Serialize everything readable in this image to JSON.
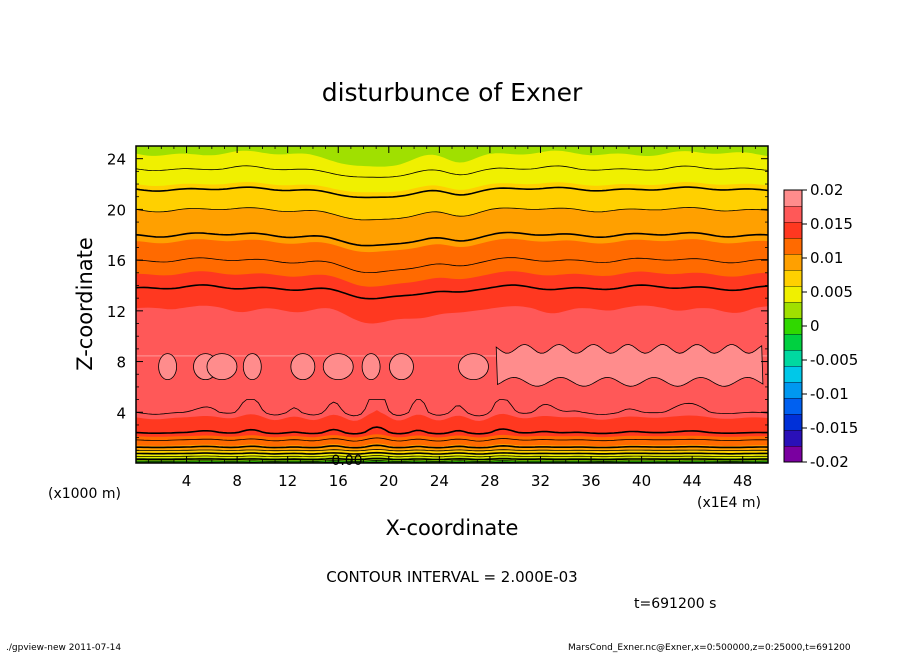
{
  "chart_data": {
    "type": "heatmap",
    "title": "disturbunce of Exner",
    "xlabel": "X-coordinate",
    "ylabel": "Z-coordinate",
    "x_unit": "(x1E4 m)",
    "y_unit": "(x1000 m)",
    "xlim": [
      0,
      50
    ],
    "ylim": [
      0,
      25
    ],
    "x_ticks": [
      "4",
      "8",
      "12",
      "16",
      "20",
      "24",
      "28",
      "32",
      "36",
      "40",
      "44",
      "48"
    ],
    "y_ticks": [
      "4",
      "8",
      "12",
      "16",
      "20",
      "24"
    ],
    "colorbar": {
      "levels": [
        -0.02,
        -0.0175,
        -0.015,
        -0.0125,
        -0.01,
        -0.0075,
        -0.005,
        -0.0025,
        0,
        0.0025,
        0.005,
        0.0075,
        0.01,
        0.0125,
        0.015,
        0.0175,
        0.02
      ],
      "tick_labels": [
        "0.02",
        "0.015",
        "0.01",
        "0.005",
        "0",
        "-0.005",
        "-0.01",
        "-0.015",
        "-0.02"
      ],
      "colors": [
        "#7a00a0",
        "#2a10b8",
        "#0030d8",
        "#0060f0",
        "#0098f0",
        "#00c8e8",
        "#00d8a0",
        "#00d040",
        "#30d800",
        "#a0e000",
        "#f0f000",
        "#ffd000",
        "#ffa000",
        "#ff6a00",
        "#ff3820",
        "#ff5858",
        "#ff8c8c"
      ]
    },
    "contour_label": "0.00",
    "annotation": "CONTOUR INTERVAL = 2.000E-03",
    "time": "t=691200 s"
  },
  "footer": {
    "left": "./gpview-new   2011-07-14",
    "right": "MarsCond_Exner.nc@Exner,x=0:500000,z=0:25000,t=691200"
  }
}
